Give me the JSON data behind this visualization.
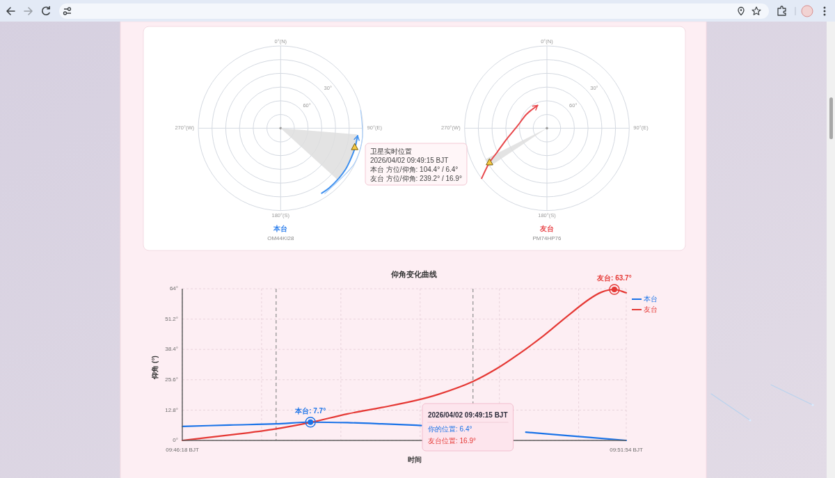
{
  "chart_data": [
    {
      "type": "other",
      "title": "本台",
      "subtitle": "OM44KI28",
      "annotations": [
        "0°(N)",
        "90°(E)",
        "180°(S)",
        "270°(W)",
        "30°",
        "60°"
      ]
    },
    {
      "type": "other",
      "title": "友台",
      "subtitle": "PM74HP76",
      "annotations": [
        "0°(N)",
        "90°(E)",
        "180°(S)",
        "270°(W)",
        "30°",
        "60°"
      ]
    },
    {
      "type": "other",
      "title": "卫星实时位置",
      "annotations": [
        "2026/04/02 09:49:15 BJT",
        "本台 方位/仰角: 104.4° / 6.4°",
        "友台 方位/仰角: 239.2° / 16.9°"
      ]
    },
    {
      "type": "line",
      "title": "仰角变化曲线",
      "xlabel": "时间",
      "ylabel": "仰角 (°)",
      "xlim": [
        "2026-04-02T09:46:18",
        "2026-04-02T09:51:54"
      ],
      "xticks": [
        {
          "value": "2026-04-02T09:46:18",
          "label": "09:46:18 BJT"
        },
        {
          "value": "2026-04-02T09:47:18",
          "label": null
        },
        {
          "value": "2026-04-02T09:48:18",
          "label": null
        },
        {
          "value": "2026-04-02T09:49:18",
          "label": null
        },
        {
          "value": "2026-04-02T09:50:18",
          "label": null
        },
        {
          "value": "2026-04-02T09:51:18",
          "label": null
        },
        {
          "value": "2026-04-02T09:51:54",
          "label": "09:51:54 BJT"
        }
      ],
      "ylim": [
        0,
        64
      ],
      "yticks": [
        {
          "value": 0,
          "label": "0°"
        },
        {
          "value": 12.8,
          "label": "12.8°"
        },
        {
          "value": 25.6,
          "label": "25.6°"
        },
        {
          "value": 38.4,
          "label": "38.4°"
        },
        {
          "value": 51.2,
          "label": "51.2°"
        },
        {
          "value": 64,
          "label": "64°"
        }
      ],
      "grid": true,
      "legend": "top right",
      "ref_lines": [
        {
          "axis": "x",
          "value": "2026-04-02T09:47:29",
          "color": "#8c8c8c",
          "line_style": "dashed"
        },
        {
          "axis": "x",
          "value": "2026-04-02T09:49:58",
          "color": "#8c8c8c",
          "line_style": "dashed"
        }
      ],
      "series": [
        {
          "name": "本台",
          "color": "#1a73e8",
          "x": [
            "2026-04-02T09:46:18",
            "2026-04-02T09:46:54",
            "2026-04-02T09:47:29",
            "2026-04-02T09:47:55",
            "2026-04-02T09:48:23",
            "2026-04-02T09:48:49",
            "2026-04-02T09:49:15",
            "2026-04-02T09:49:19",
            "2026-04-02T09:49:58",
            "2026-04-02T09:50:38",
            "2026-04-02T09:51:08",
            "2026-04-02T09:51:26",
            "2026-04-02T09:51:54"
          ],
          "values": [
            5.9,
            6.5,
            7.0,
            7.7,
            7.5,
            7.0,
            6.4,
            6.3,
            null,
            3.5,
            2.1,
            1.3,
            0
          ]
        },
        {
          "name": "友台",
          "color": "#e53935",
          "x": [
            "2026-04-02T09:46:18",
            "2026-04-02T09:46:54",
            "2026-04-02T09:47:29",
            "2026-04-02T09:47:55",
            "2026-04-02T09:48:23",
            "2026-04-02T09:48:49",
            "2026-04-02T09:49:15",
            "2026-04-02T09:49:32",
            "2026-04-02T09:49:58",
            "2026-04-02T09:50:16",
            "2026-04-02T09:50:33",
            "2026-04-02T09:50:51",
            "2026-04-02T09:51:08",
            "2026-04-02T09:51:26",
            "2026-04-02T09:51:35",
            "2026-04-02T09:51:45",
            "2026-04-02T09:51:54"
          ],
          "values": [
            0,
            2.3,
            4.9,
            7.6,
            11.2,
            13.9,
            16.9,
            19.5,
            24.9,
            30.3,
            36.6,
            44.0,
            51.8,
            59.6,
            62.5,
            63.7,
            62.3
          ]
        }
      ],
      "annotations": [
        {
          "text": "本台: 7.7°",
          "x": "2026-04-02T09:47:55",
          "y": 7.7
        },
        {
          "text": "友台: 63.7°",
          "x": "2026-04-02T09:51:45",
          "y": 63.7
        },
        "2026/04/02 09:49:15 BJT",
        "你的位置: 6.4°",
        "友台位置: 16.9°"
      ]
    }
  ]
}
